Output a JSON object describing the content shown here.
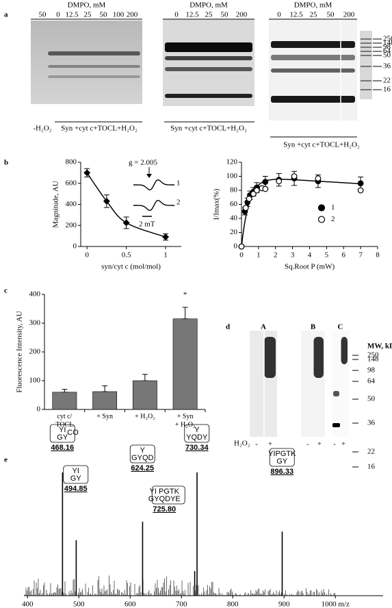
{
  "panel_labels": [
    "a",
    "b",
    "c",
    "d",
    "e"
  ],
  "panel_a": {
    "gels": [
      {
        "header": "DMPO, mM",
        "lanes": [
          "50",
          "0",
          "12.5",
          "25",
          "50",
          "100",
          "200"
        ],
        "footer": [
          "-H₂O₂",
          "Syn +cyt c+TOCL+H₂O₂"
        ]
      },
      {
        "header": "DMPO, mM",
        "lanes": [
          "0",
          "12.5",
          "25",
          "50",
          "200"
        ],
        "footer": [
          "Syn +cyt c+TOCL+H₂O₂"
        ]
      },
      {
        "header": "DMPO, mM",
        "lanes": [
          "0",
          "12.5",
          "25",
          "50",
          "200"
        ],
        "footer": [
          "Syn +cyt c+TOCL+H₂O₂"
        ]
      }
    ],
    "markers": [
      "250",
      "148",
      "98",
      "64",
      "50",
      "36",
      "22",
      "16"
    ]
  },
  "panel_d": {
    "gels": [
      "A",
      "B",
      "C"
    ],
    "mw_title": "MW, kDa",
    "markers": [
      "250",
      "148",
      "98",
      "64",
      "50",
      "36",
      "22",
      "16"
    ],
    "row_label": "H₂O₂",
    "lanes": [
      "-",
      "+",
      "-",
      "+",
      "-",
      "+"
    ]
  },
  "chart_data": [
    {
      "type": "line",
      "xlabel": "syn/cyt c  (mol/mol)",
      "ylabel": "Magnitude, AU",
      "x": [
        0,
        0.25,
        0.5,
        1
      ],
      "series": [
        {
          "color": "#000000",
          "values": [
            700,
            430,
            225,
            90
          ],
          "errors": [
            40,
            60,
            55,
            30
          ]
        }
      ],
      "xlim": [
        -0.08,
        1.2
      ],
      "xticks": [
        0,
        0.5,
        1
      ],
      "ylim": [
        0,
        800
      ],
      "yticks": [
        0,
        200,
        400,
        600,
        800
      ],
      "annotations": [
        "g = 2.005",
        "1",
        "2",
        "2 mT"
      ]
    },
    {
      "type": "scatter",
      "xlabel": "Sq.Root P (mW)",
      "ylabel": "I/Imax(%)",
      "legend": "center right",
      "series": [
        {
          "name": "1",
          "color": "#000000",
          "x": [
            0,
            0.2,
            0.35,
            0.5,
            0.7,
            0.9,
            1.4,
            2.2,
            3.1,
            4.5,
            7
          ],
          "values": [
            0,
            50,
            63,
            73,
            78,
            84,
            92,
            95,
            97,
            93,
            90
          ],
          "errors": [
            0,
            5,
            6,
            6,
            6,
            7,
            8,
            9,
            10,
            9,
            9
          ]
        },
        {
          "name": "2",
          "color": "#ffffff",
          "x": [
            0,
            0.25,
            0.45,
            0.7,
            0.9,
            1.2,
            1.4,
            2.2,
            3.1,
            4.5,
            7
          ],
          "values": [
            0,
            55,
            68,
            75,
            80,
            83,
            82,
            93,
            100,
            97,
            80
          ]
        }
      ],
      "xlim": [
        0,
        8
      ],
      "xticks": [
        0,
        1,
        2,
        3,
        4,
        5,
        6,
        7,
        8
      ],
      "ylim": [
        0,
        120
      ],
      "yticks": [
        0,
        20,
        40,
        60,
        80,
        100,
        120
      ]
    },
    {
      "type": "bar",
      "ylabel": "Fluorescence Intensity, AU",
      "color": "#777777",
      "categories": [
        "cyt c/\nTOCL",
        "+ Syn",
        "+ H₂O₂",
        "+ Syn\n+ H₂O₂"
      ],
      "values": [
        60,
        62,
        100,
        315
      ],
      "errors": [
        10,
        20,
        22,
        40
      ],
      "ylim": [
        0,
        400
      ],
      "yticks": [
        0,
        100,
        200,
        300,
        400
      ],
      "annotations": [
        "*"
      ]
    },
    {
      "type": "stem",
      "color": "#000000",
      "x": [
        468.16,
        494.85,
        624.25,
        725.8,
        730.34,
        896.33
      ],
      "x_labels": [
        "468.16",
        "494.85",
        "624.25",
        "725.80",
        "730.34",
        "896.33"
      ],
      "values": [
        100,
        45,
        60,
        20,
        100,
        52
      ],
      "fragments": [
        {
          "top": "YI",
          "sub": "CO",
          "bottom": "GY"
        },
        {
          "top": "YI",
          "bottom": "GY"
        },
        {
          "top": "Y",
          "bottom": "GYQD"
        },
        {
          "top": "YI PGTK",
          "bottom": "GYQDYE"
        },
        {
          "top": "Y",
          "bottom": "YQDY"
        },
        {
          "top": "YIPGTK",
          "bottom": "GY"
        }
      ],
      "xlim": [
        393,
        1093
      ],
      "ylim": [
        0,
        100
      ],
      "xticks": [
        400,
        500,
        600,
        700,
        800,
        900,
        {
          "value": 1000,
          "label": "1000 m/z"
        }
      ]
    }
  ]
}
